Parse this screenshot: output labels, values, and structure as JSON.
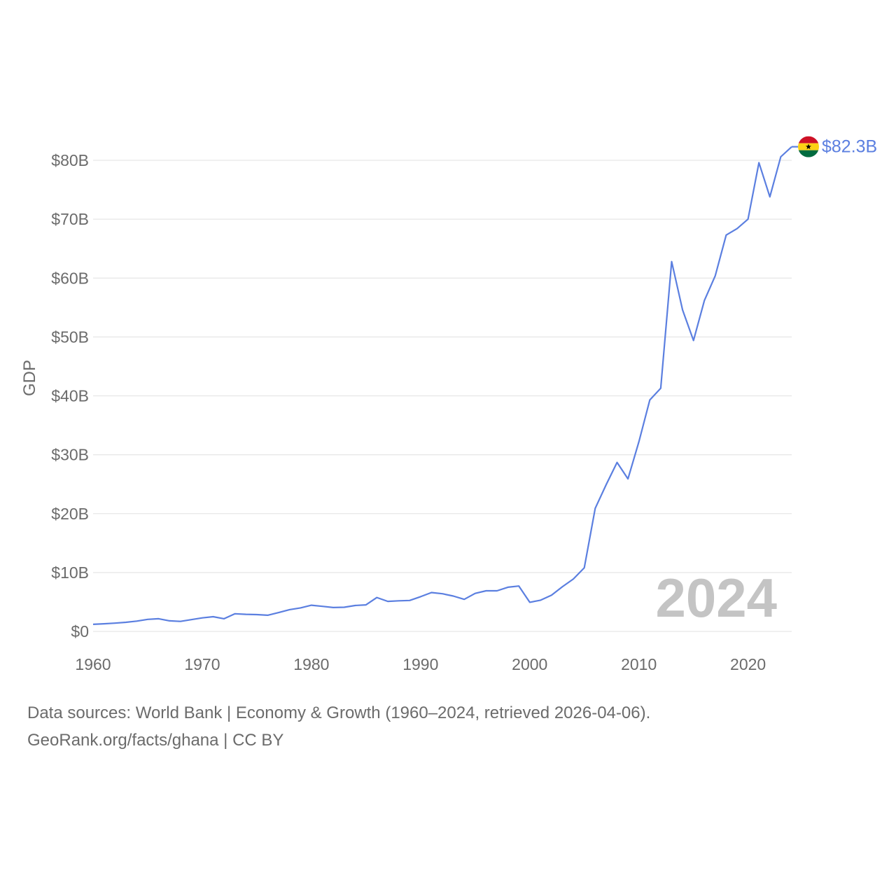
{
  "chart_data": {
    "type": "line",
    "title": "",
    "xlabel": "",
    "ylabel": "GDP",
    "xlim": [
      1960,
      2024
    ],
    "ylim": [
      0,
      80
    ],
    "y_unit": "billion USD",
    "x_ticks": [
      1960,
      1970,
      1980,
      1990,
      2000,
      2010,
      2020
    ],
    "x_tick_labels": [
      "1960",
      "1970",
      "1980",
      "1990",
      "2000",
      "2010",
      "2020"
    ],
    "y_ticks": [
      0,
      10,
      20,
      30,
      40,
      50,
      60,
      70,
      80
    ],
    "y_tick_labels": [
      "$0",
      "$10B",
      "$20B",
      "$30B",
      "$40B",
      "$50B",
      "$60B",
      "$70B",
      "$80B"
    ],
    "grid": true,
    "series": [
      {
        "name": "Ghana",
        "color": "#5b7fe0",
        "x": [
          1960,
          1961,
          1962,
          1963,
          1964,
          1965,
          1966,
          1967,
          1968,
          1969,
          1970,
          1971,
          1972,
          1973,
          1974,
          1975,
          1976,
          1977,
          1978,
          1979,
          1980,
          1981,
          1982,
          1983,
          1984,
          1985,
          1986,
          1987,
          1988,
          1989,
          1990,
          1991,
          1992,
          1993,
          1994,
          1995,
          1996,
          1997,
          1998,
          1999,
          2000,
          2001,
          2002,
          2003,
          2004,
          2005,
          2006,
          2007,
          2008,
          2009,
          2010,
          2011,
          2012,
          2013,
          2014,
          2015,
          2016,
          2017,
          2018,
          2019,
          2020,
          2021,
          2022,
          2023,
          2024
        ],
        "values": [
          1.2,
          1.3,
          1.4,
          1.55,
          1.75,
          2.05,
          2.15,
          1.8,
          1.7,
          2.0,
          2.3,
          2.5,
          2.15,
          3.0,
          2.9,
          2.85,
          2.75,
          3.2,
          3.7,
          4.0,
          4.45,
          4.25,
          4.05,
          4.1,
          4.4,
          4.5,
          5.75,
          5.1,
          5.2,
          5.25,
          5.9,
          6.6,
          6.4,
          6.0,
          5.45,
          6.45,
          6.9,
          6.9,
          7.5,
          7.7,
          4.95,
          5.3,
          6.15,
          7.6,
          8.9,
          10.8,
          20.9,
          24.9,
          28.7,
          25.9,
          32.2,
          39.3,
          41.3,
          62.8,
          54.6,
          49.4,
          56.2,
          60.4,
          67.3,
          68.4,
          70.0,
          79.6,
          73.8,
          80.6,
          82.3
        ]
      }
    ],
    "end_label": "$82.3B",
    "year_label": "2024",
    "legend": "none"
  },
  "flag_icon": "ghana-flag-icon",
  "flag_colors": {
    "red": "#ce1126",
    "gold": "#fcd116",
    "green": "#006b3f",
    "star": "#000000"
  },
  "source": {
    "line1": "Data sources: World Bank | Economy & Growth (1960–2024, retrieved 2026-04-06).",
    "line2": "GeoRank.org/facts/ghana | CC BY"
  }
}
